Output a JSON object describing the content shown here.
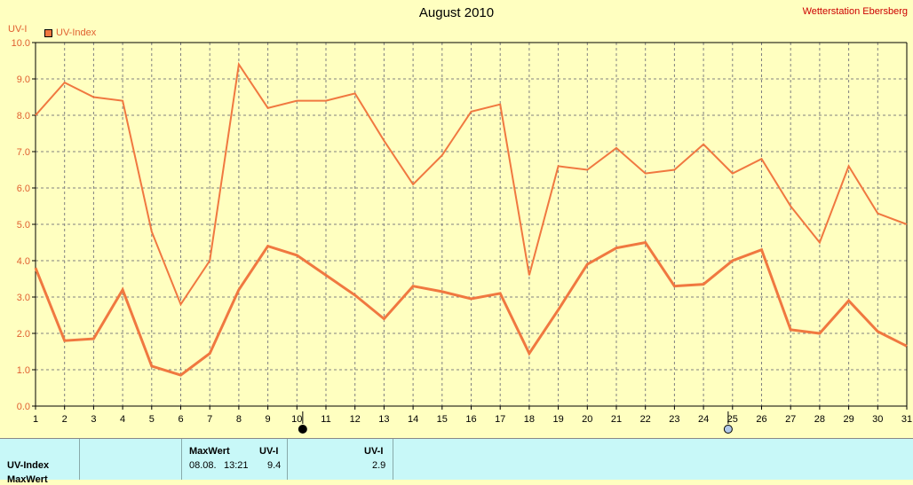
{
  "header": {
    "title": "August 2010",
    "station": "Wetterstation Ebersberg",
    "y_unit": "UV-I",
    "legend_label": "UV-Index"
  },
  "colors": {
    "line": "#f07840",
    "background": "#ffffc0",
    "grid": "#808080",
    "panel": "#c8f8f8"
  },
  "chart_data": {
    "type": "line",
    "title": "August 2010",
    "ylabel": "UV-I",
    "ylim": [
      0,
      10
    ],
    "xlim": [
      1,
      31
    ],
    "y_ticks": [
      "0.0",
      "1.0",
      "2.0",
      "3.0",
      "4.0",
      "5.0",
      "6.0",
      "7.0",
      "8.0",
      "9.0",
      "10.0"
    ],
    "x_ticks": [
      "1",
      "2",
      "3",
      "4",
      "5",
      "6",
      "7",
      "8",
      "9",
      "10",
      "11",
      "12",
      "13",
      "14",
      "15",
      "16",
      "17",
      "18",
      "19",
      "20",
      "21",
      "22",
      "23",
      "24",
      "25",
      "26",
      "27",
      "28",
      "29",
      "30",
      "31"
    ],
    "grid": true,
    "legend": "top-left",
    "x": [
      1,
      2,
      3,
      4,
      5,
      6,
      7,
      8,
      9,
      10,
      11,
      12,
      13,
      14,
      15,
      16,
      17,
      18,
      19,
      20,
      21,
      22,
      23,
      24,
      25,
      26,
      27,
      28,
      29,
      30,
      31
    ],
    "series": [
      {
        "name": "UV-Index",
        "values": [
          8.0,
          8.9,
          8.5,
          8.4,
          4.8,
          2.8,
          4.0,
          9.4,
          8.2,
          8.4,
          8.4,
          8.6,
          7.3,
          6.1,
          6.9,
          8.1,
          8.3,
          3.6,
          6.6,
          6.5,
          7.1,
          6.4,
          6.5,
          7.2,
          6.4,
          6.8,
          5.5,
          4.5,
          6.6,
          5.3,
          5.0
        ]
      },
      {
        "values": [
          3.8,
          1.8,
          1.85,
          3.2,
          1.1,
          0.85,
          1.45,
          3.2,
          4.4,
          4.15,
          3.6,
          3.05,
          2.4,
          3.3,
          3.15,
          2.95,
          3.1,
          1.45,
          2.65,
          3.9,
          4.35,
          4.5,
          3.3,
          3.35,
          4.0,
          4.3,
          2.1,
          2.0,
          2.9,
          2.05,
          1.65
        ]
      }
    ]
  },
  "panel": {
    "row1_label": "UV-Index",
    "row2_label": "MaxWert",
    "max_header": "MaxWert",
    "unit_header": "UV-I",
    "max_date": "08.08.",
    "max_time": "13:21",
    "max_value": "9.4",
    "col3_header": "UV-I",
    "col3_value": "2.9"
  }
}
